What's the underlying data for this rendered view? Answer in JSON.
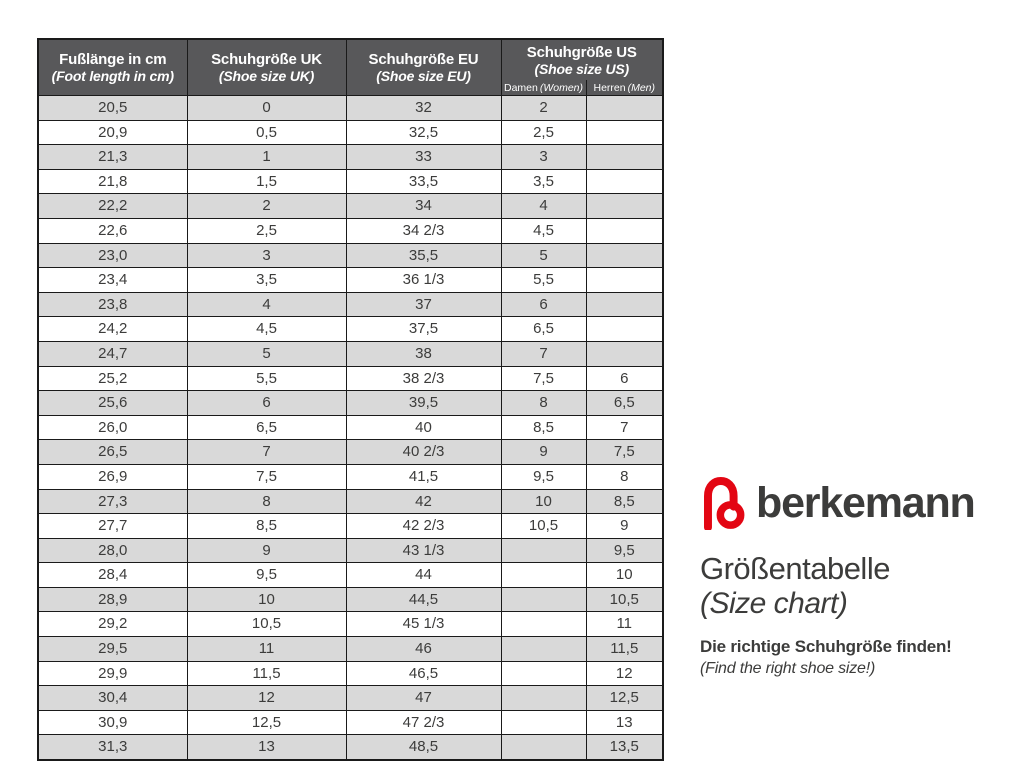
{
  "colors": {
    "header_bg": "#58585a",
    "header_text": "#ffffff",
    "row_stripe": "#d9d9d9",
    "row_base": "#ffffff",
    "border": "#1a1a1a",
    "text": "#3c3c3b",
    "brand_red": "#e30613"
  },
  "chart_data": {
    "type": "table",
    "title": "Größentabelle (Size chart)",
    "columns": [
      {
        "label": "Fußlänge in cm",
        "sublabel": "(Foot length in cm)"
      },
      {
        "label": "Schuhgröße UK",
        "sublabel": "(Shoe size UK)"
      },
      {
        "label": "Schuhgröße EU",
        "sublabel": "(Shoe size EU)"
      },
      {
        "label": "Schuhgröße US",
        "sublabel": "(Shoe size US)",
        "subcolumns": [
          {
            "label": "Damen",
            "label_en": "(Women)"
          },
          {
            "label": "Herren",
            "label_en": "(Men)"
          }
        ]
      }
    ],
    "rows": [
      [
        "20,5",
        "0",
        "32",
        "2",
        ""
      ],
      [
        "20,9",
        "0,5",
        "32,5",
        "2,5",
        ""
      ],
      [
        "21,3",
        "1",
        "33",
        "3",
        ""
      ],
      [
        "21,8",
        "1,5",
        "33,5",
        "3,5",
        ""
      ],
      [
        "22,2",
        "2",
        "34",
        "4",
        ""
      ],
      [
        "22,6",
        "2,5",
        "34 2/3",
        "4,5",
        ""
      ],
      [
        "23,0",
        "3",
        "35,5",
        "5",
        ""
      ],
      [
        "23,4",
        "3,5",
        "36 1/3",
        "5,5",
        ""
      ],
      [
        "23,8",
        "4",
        "37",
        "6",
        ""
      ],
      [
        "24,2",
        "4,5",
        "37,5",
        "6,5",
        ""
      ],
      [
        "24,7",
        "5",
        "38",
        "7",
        ""
      ],
      [
        "25,2",
        "5,5",
        "38 2/3",
        "7,5",
        "6"
      ],
      [
        "25,6",
        "6",
        "39,5",
        "8",
        "6,5"
      ],
      [
        "26,0",
        "6,5",
        "40",
        "8,5",
        "7"
      ],
      [
        "26,5",
        "7",
        "40 2/3",
        "9",
        "7,5"
      ],
      [
        "26,9",
        "7,5",
        "41,5",
        "9,5",
        "8"
      ],
      [
        "27,3",
        "8",
        "42",
        "10",
        "8,5"
      ],
      [
        "27,7",
        "8,5",
        "42 2/3",
        "10,5",
        "9"
      ],
      [
        "28,0",
        "9",
        "43 1/3",
        "",
        "9,5"
      ],
      [
        "28,4",
        "9,5",
        "44",
        "",
        "10"
      ],
      [
        "28,9",
        "10",
        "44,5",
        "",
        "10,5"
      ],
      [
        "29,2",
        "10,5",
        "45 1/3",
        "",
        "11"
      ],
      [
        "29,5",
        "11",
        "46",
        "",
        "11,5"
      ],
      [
        "29,9",
        "11,5",
        "46,5",
        "",
        "12"
      ],
      [
        "30,4",
        "12",
        "47",
        "",
        "12,5"
      ],
      [
        "30,9",
        "12,5",
        "47 2/3",
        "",
        "13"
      ],
      [
        "31,3",
        "13",
        "48,5",
        "",
        "13,5"
      ]
    ]
  },
  "branding": {
    "logo_text": "berkemann",
    "title": "Größentabelle",
    "subtitle": "(Size chart)",
    "tagline_de": "Die richtige Schuhgröße finden!",
    "tagline_en": "(Find the right shoe size!)"
  }
}
